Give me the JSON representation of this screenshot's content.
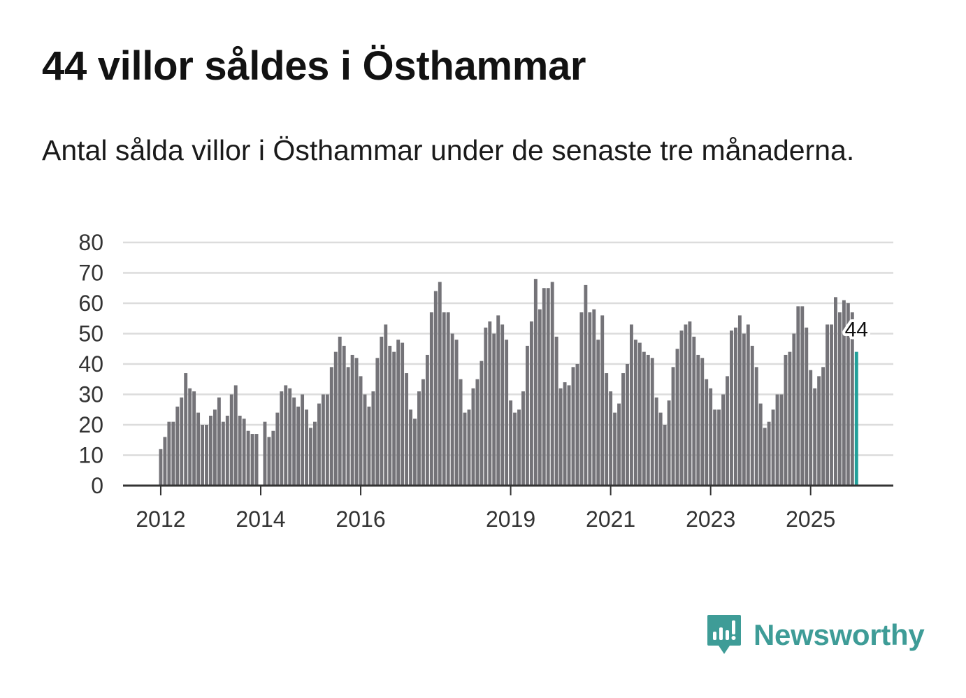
{
  "header": {
    "title": "44 villor såldes i Östhammar",
    "subtitle": "Antal sålda villor i Östhammar under de senaste tre månaderna."
  },
  "brand": {
    "name": "Newsworthy",
    "icon": "newsworthy-logo-icon"
  },
  "colors": {
    "bar": "#747378",
    "highlight": "#22a09a",
    "grid": "#dcdcdc",
    "baseline": "#333333",
    "brand": "#3e9c97"
  },
  "chart_data": {
    "type": "bar",
    "title": "44 villor såldes i Östhammar",
    "subtitle": "Antal sålda villor i Östhammar under de senaste tre månaderna.",
    "xlabel": "",
    "ylabel": "",
    "ylim": [
      0,
      80
    ],
    "yticks": [
      0,
      10,
      20,
      30,
      40,
      50,
      60,
      70,
      80
    ],
    "grid": true,
    "first_period": "2012-01",
    "xticks": [
      {
        "label": "2012",
        "index": 0
      },
      {
        "label": "2014",
        "index": 24
      },
      {
        "label": "2016",
        "index": 48
      },
      {
        "label": "2019",
        "index": 84
      },
      {
        "label": "2021",
        "index": 108
      },
      {
        "label": "2023",
        "index": 132
      },
      {
        "label": "2025",
        "index": 156
      }
    ],
    "series": [
      {
        "name": "Antal sålda villor",
        "values": [
          12,
          16,
          21,
          21,
          26,
          29,
          37,
          32,
          31,
          24,
          20,
          20,
          23,
          25,
          29,
          21,
          23,
          30,
          33,
          23,
          22,
          18,
          17,
          17,
          null,
          21,
          16,
          18,
          24,
          31,
          33,
          32,
          29,
          26,
          30,
          25,
          19,
          21,
          27,
          30,
          30,
          39,
          44,
          49,
          46,
          39,
          43,
          42,
          36,
          30,
          26,
          31,
          42,
          49,
          53,
          46,
          44,
          48,
          47,
          37,
          25,
          22,
          31,
          35,
          43,
          57,
          64,
          67,
          57,
          57,
          50,
          48,
          35,
          24,
          25,
          32,
          35,
          41,
          52,
          54,
          50,
          56,
          53,
          48,
          28,
          24,
          25,
          31,
          46,
          54,
          68,
          58,
          65,
          65,
          67,
          49,
          32,
          34,
          33,
          39,
          40,
          57,
          66,
          57,
          58,
          48,
          56,
          37,
          31,
          24,
          27,
          37,
          40,
          53,
          48,
          47,
          44,
          43,
          42,
          29,
          24,
          20,
          28,
          39,
          45,
          51,
          53,
          54,
          49,
          43,
          42,
          35,
          32,
          25,
          25,
          30,
          36,
          51,
          52,
          56,
          50,
          53,
          46,
          39,
          27,
          19,
          21,
          25,
          30,
          30,
          43,
          44,
          50,
          59,
          59,
          52,
          38,
          32,
          36,
          39,
          53,
          53,
          62,
          57,
          61,
          60,
          57,
          44
        ]
      }
    ],
    "highlight": {
      "index": 167,
      "value": 44,
      "label": "44"
    }
  }
}
